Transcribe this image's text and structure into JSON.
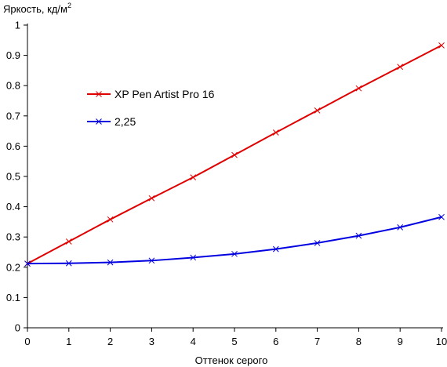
{
  "chart_data": {
    "type": "line",
    "ylabel": "Яркость, кд/м",
    "ylabel_superscript": "2",
    "xlabel": "Оттенок серого",
    "xlim": [
      0,
      10
    ],
    "ylim": [
      0,
      1
    ],
    "x_ticks": [
      "0",
      "1",
      "2",
      "3",
      "4",
      "5",
      "6",
      "7",
      "8",
      "9",
      "10"
    ],
    "y_ticks": [
      "0",
      "0.1",
      "0.2",
      "0.3",
      "0.4",
      "0.5",
      "0.6",
      "0.7",
      "0.8",
      "0.9",
      "1"
    ],
    "grid": false,
    "legend_position": "upper-left-inside",
    "x": [
      0,
      1,
      2,
      3,
      4,
      5,
      6,
      7,
      8,
      9,
      10
    ],
    "series": [
      {
        "name": "XP Pen Artist Pro 16",
        "color": "#e00000",
        "marker": "x",
        "values": [
          0.212,
          0.285,
          0.358,
          0.428,
          0.497,
          0.571,
          0.645,
          0.718,
          0.791,
          0.862,
          0.933
        ]
      },
      {
        "name": "2,25",
        "color": "#0000e0",
        "marker": "x",
        "values": [
          0.212,
          0.213,
          0.216,
          0.222,
          0.232,
          0.244,
          0.26,
          0.28,
          0.304,
          0.332,
          0.366
        ]
      }
    ]
  }
}
